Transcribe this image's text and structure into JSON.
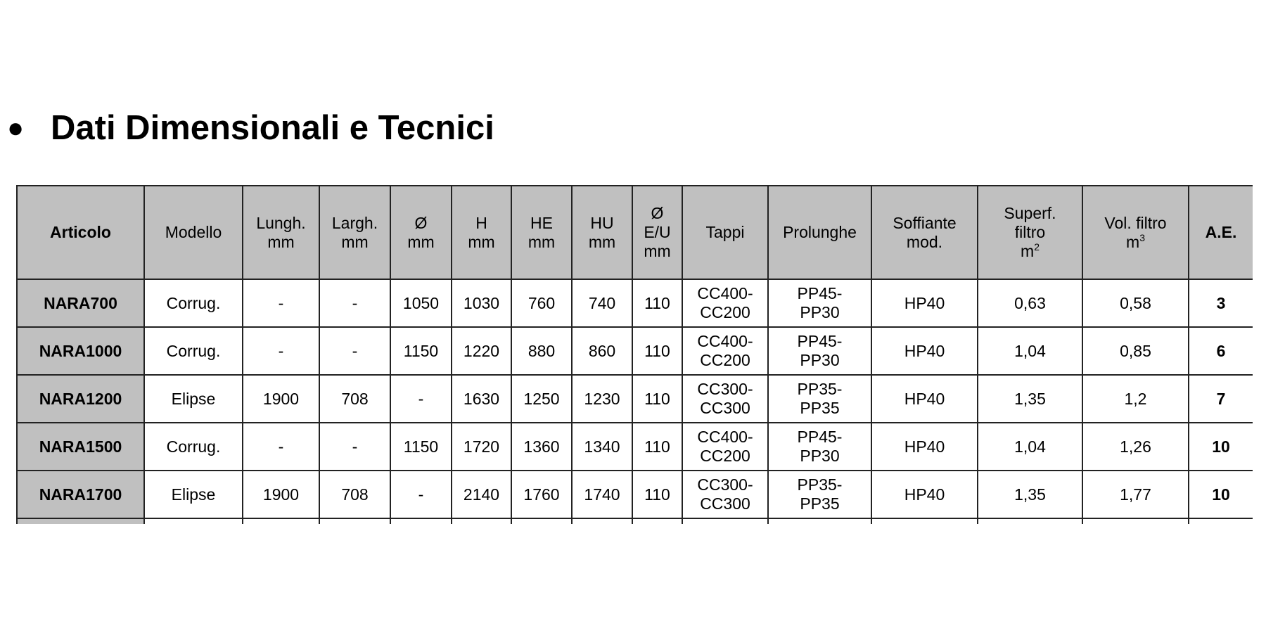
{
  "title": "Dati Dimensionali e Tecnici",
  "table": {
    "headers": [
      {
        "lines": [
          "Articolo"
        ],
        "bold": true
      },
      {
        "lines": [
          "Modello"
        ]
      },
      {
        "lines": [
          "Lungh.",
          "mm"
        ]
      },
      {
        "lines": [
          "Largh.",
          "mm"
        ]
      },
      {
        "lines": [
          "Ø",
          "mm"
        ]
      },
      {
        "lines": [
          "H",
          "mm"
        ]
      },
      {
        "lines": [
          "HE",
          "mm"
        ]
      },
      {
        "lines": [
          "HU",
          "mm"
        ]
      },
      {
        "lines": [
          "Ø",
          "E/U",
          "mm"
        ]
      },
      {
        "lines": [
          "Tappi"
        ]
      },
      {
        "lines": [
          "Prolunghe"
        ]
      },
      {
        "lines": [
          "Soffiante",
          "mod."
        ]
      },
      {
        "lines": [
          "Superf.",
          "filtro",
          "m"
        ],
        "sup": "2"
      },
      {
        "lines": [
          "Vol. filtro",
          "m"
        ],
        "sup": "3"
      },
      {
        "lines": [
          "A.E."
        ],
        "bold": true
      }
    ],
    "rows": [
      [
        "NARA700",
        "Corrug.",
        "-",
        "-",
        "1050",
        "1030",
        "760",
        "740",
        "110",
        [
          "CC400-",
          "CC200"
        ],
        [
          "PP45-",
          "PP30"
        ],
        "HP40",
        "0,63",
        "0,58",
        "3"
      ],
      [
        "NARA1000",
        "Corrug.",
        "-",
        "-",
        "1150",
        "1220",
        "880",
        "860",
        "110",
        [
          "CC400-",
          "CC200"
        ],
        [
          "PP45-",
          "PP30"
        ],
        "HP40",
        "1,04",
        "0,85",
        "6"
      ],
      [
        "NARA1200",
        "Elipse",
        "1900",
        "708",
        "-",
        "1630",
        "1250",
        "1230",
        "110",
        [
          "CC300-",
          "CC300"
        ],
        [
          "PP35-",
          "PP35"
        ],
        "HP40",
        "1,35",
        "1,2",
        "7"
      ],
      [
        "NARA1500",
        "Corrug.",
        "-",
        "-",
        "1150",
        "1720",
        "1360",
        "1340",
        "110",
        [
          "CC400-",
          "CC200"
        ],
        [
          "PP45-",
          "PP30"
        ],
        "HP40",
        "1,04",
        "1,26",
        "10"
      ],
      [
        "NARA1700",
        "Elipse",
        "1900",
        "708",
        "-",
        "2140",
        "1760",
        "1740",
        "110",
        [
          "CC300-",
          "CC300"
        ],
        [
          "PP35-",
          "PP35"
        ],
        "HP40",
        "1,35",
        "1,77",
        "10"
      ]
    ]
  },
  "colors": {
    "header_bg": "#c0c0c0",
    "border": "#222222"
  }
}
